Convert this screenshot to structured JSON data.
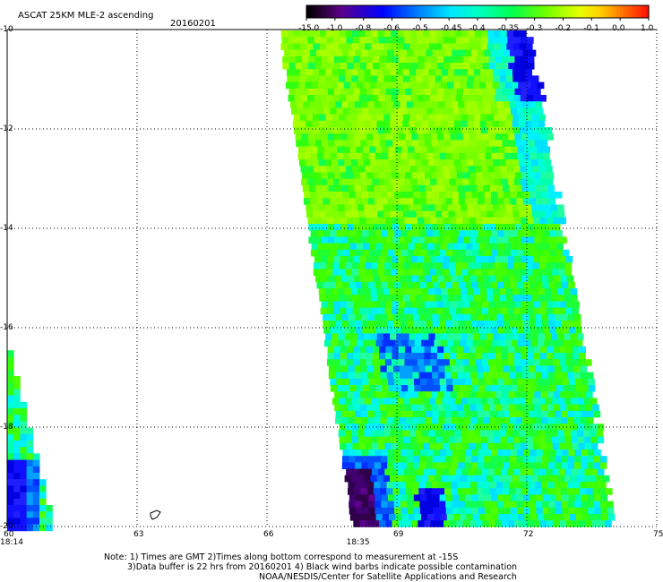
{
  "title": "ASCAT 25KM MLE-2 ascending",
  "date": "20160201",
  "colorbar": {
    "labels": [
      "-15.0",
      "-1.0",
      "-0.8",
      "-0.6",
      "-0.5",
      "-0.45",
      "-0.4",
      "-0.35",
      "-0.3",
      "-0.2",
      "-0.1",
      "0.0",
      "1.0"
    ],
    "colors": [
      "#000000",
      "#3a0060",
      "#7000b0",
      "#0000ff",
      "#0090ff",
      "#00d8ff",
      "#00ffd0",
      "#00ff70",
      "#50ff00",
      "#b0ff00",
      "#ffff00",
      "#ff8000",
      "#ff2000"
    ]
  },
  "map": {
    "lon_range": [
      60,
      75
    ],
    "lat_range": [
      -20,
      -10
    ],
    "lon_ticks": [
      "60",
      "63",
      "66",
      "69",
      "72",
      "75"
    ],
    "lat_ticks": [
      "-10",
      "-12",
      "-14",
      "-16",
      "-18",
      "-20"
    ],
    "times": [
      {
        "label": "18:14",
        "lon": 60
      },
      {
        "label": "18:35",
        "lon": 68
      }
    ]
  },
  "notes": {
    "line1": "Note: 1) Times are GMT 2)Times along bottom correspond to measurement at -15S",
    "line2": "3)Data buffer is 22 hrs from 20160201 4) Black wind barbs indicate possible contamination",
    "line3": "NOAA/NESDIS/Center for Satellite Applications and Research"
  }
}
